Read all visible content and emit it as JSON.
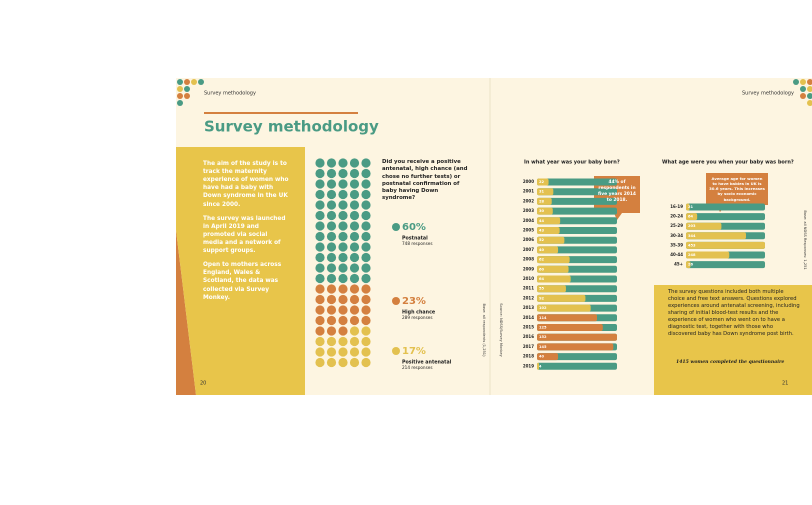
{
  "header": {
    "left": "Survey methodology",
    "right": "Survey methodology"
  },
  "title": "Survey methodology",
  "intro": [
    "The aim of the study is to track the maternity experience of women who have had a baby with Down syndrome in the UK since 2000.",
    "The survey was launched in April 2019 and promoted via social media and a network of support groups.",
    "Open to mothers across England, Wales & Scotland, the data was collected via Survey Monkey."
  ],
  "confirmation": {
    "question": "Did you receive a positive antenatal, high chance (and chose no further tests) or postnatal confirmation of baby having Down syndrome?",
    "groups": [
      {
        "percent": {
          "value": 60,
          "label": "60%"
        },
        "label": "Postnatal",
        "responses": "748 responses",
        "color": "#4a9b84"
      },
      {
        "percent": {
          "value": 23,
          "label": "23%"
        },
        "label": "High chance",
        "responses": "289 responses",
        "color": "#d4803f"
      },
      {
        "percent": {
          "value": 17,
          "label": "17%"
        },
        "label": "Positive antenatal",
        "responses": "214 responses",
        "color": "#e3c14f"
      }
    ]
  },
  "side_notes": [
    "Base: all respondents (1,251)",
    "Source: NDSS/Survey Monkey"
  ],
  "year_chart": {
    "title": "In what year was your baby born?",
    "categories": [
      "2000",
      "2001",
      "2002",
      "2003",
      "2004",
      "2005",
      "2006",
      "2007",
      "2008",
      "2009",
      "2010",
      "2011",
      "2012",
      "2013",
      "2014",
      "2015",
      "2016",
      "2017",
      "2018",
      "2019"
    ],
    "values": [
      22,
      31,
      28,
      30,
      44,
      43,
      52,
      40,
      62,
      60,
      64,
      55,
      92,
      102,
      114,
      125,
      152,
      145,
      40,
      4
    ],
    "colors": [
      "#e3c14f",
      "#e3c14f",
      "#e3c14f",
      "#e3c14f",
      "#e3c14f",
      "#e3c14f",
      "#e3c14f",
      "#e3c14f",
      "#e3c14f",
      "#e3c14f",
      "#e3c14f",
      "#e3c14f",
      "#e3c14f",
      "#e3c14f",
      "#d4803f",
      "#d4803f",
      "#d4803f",
      "#d4803f",
      "#d4803f",
      "#e3c14f"
    ],
    "callout": "44% of respondents in five years 2014 to 2018."
  },
  "age_chart": {
    "title": "What age were you when your baby was born?",
    "categories": [
      "16-19",
      "20-24",
      "25-29",
      "30-34",
      "35-39",
      "40-44",
      "45+"
    ],
    "values": [
      21,
      64,
      203,
      344,
      453,
      248,
      26
    ],
    "callout": "Average age for women to have babies in UK is 30.6 years. This increases by socio economic background."
  },
  "right_note": "Base: all NDSS Responses: 1,251",
  "methods": {
    "text": "The survey questions included both multiple choice and free text answers. Questions explored experiences around antenatal screening, including sharing of initial blood-test results and the experience of women who went on to have a diagnostic test, together with those who discovered baby has Down syndrome post birth.",
    "note": "1415 women completed the questionnaire"
  },
  "page_numbers": [
    "20",
    "21"
  ]
}
